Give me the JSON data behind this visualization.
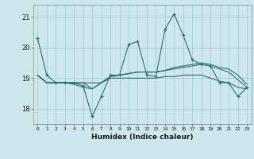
{
  "xlabel": "Humidex (Indice chaleur)",
  "ylabel": "",
  "background_color": "#cde8ed",
  "grid_color": "#a8cdd4",
  "line_color": "#2a7070",
  "xlim": [
    -0.5,
    23.5
  ],
  "ylim": [
    17.5,
    21.4
  ],
  "yticks": [
    18,
    19,
    20,
    21
  ],
  "xticks": [
    0,
    1,
    2,
    3,
    4,
    5,
    6,
    7,
    8,
    9,
    10,
    11,
    12,
    13,
    14,
    15,
    16,
    17,
    18,
    19,
    20,
    21,
    22,
    23
  ],
  "series": [
    {
      "x": [
        0,
        1,
        2,
        3,
        4,
        5,
        6,
        7,
        8,
        9,
        10,
        11,
        12,
        13,
        14,
        15,
        16,
        17,
        18,
        19,
        20,
        21,
        22,
        23
      ],
      "y": [
        20.3,
        19.1,
        18.85,
        18.85,
        18.85,
        18.75,
        17.75,
        18.4,
        19.1,
        19.1,
        20.1,
        20.2,
        19.1,
        19.05,
        20.6,
        21.1,
        20.4,
        19.6,
        19.45,
        19.4,
        18.85,
        18.85,
        18.4,
        18.7
      ],
      "marker": "+"
    },
    {
      "x": [
        0,
        1,
        2,
        3,
        4,
        5,
        6,
        7,
        8,
        9,
        10,
        11,
        12,
        13,
        14,
        15,
        16,
        17,
        18,
        19,
        20,
        21,
        22,
        23
      ],
      "y": [
        19.1,
        18.85,
        18.85,
        18.85,
        18.85,
        18.85,
        18.85,
        18.85,
        19.0,
        19.0,
        19.0,
        19.0,
        19.0,
        19.0,
        19.05,
        19.05,
        19.1,
        19.1,
        19.1,
        19.0,
        18.9,
        18.85,
        18.7,
        18.65
      ],
      "marker": null
    },
    {
      "x": [
        0,
        1,
        2,
        3,
        4,
        5,
        6,
        7,
        8,
        9,
        10,
        11,
        12,
        13,
        14,
        15,
        16,
        17,
        18,
        19,
        20,
        21,
        22,
        23
      ],
      "y": [
        19.1,
        18.85,
        18.85,
        18.85,
        18.85,
        18.85,
        18.65,
        18.85,
        19.05,
        19.1,
        19.15,
        19.2,
        19.2,
        19.2,
        19.25,
        19.35,
        19.4,
        19.45,
        19.5,
        19.45,
        19.35,
        19.3,
        19.1,
        18.8
      ],
      "marker": null
    },
    {
      "x": [
        0,
        1,
        2,
        3,
        4,
        5,
        6,
        7,
        8,
        9,
        10,
        11,
        12,
        13,
        14,
        15,
        16,
        17,
        18,
        19,
        20,
        21,
        22,
        23
      ],
      "y": [
        19.1,
        18.85,
        18.85,
        18.85,
        18.8,
        18.7,
        18.65,
        18.85,
        19.05,
        19.1,
        19.15,
        19.2,
        19.2,
        19.2,
        19.25,
        19.3,
        19.35,
        19.4,
        19.45,
        19.4,
        19.3,
        19.2,
        18.95,
        18.7
      ],
      "marker": null
    }
  ]
}
